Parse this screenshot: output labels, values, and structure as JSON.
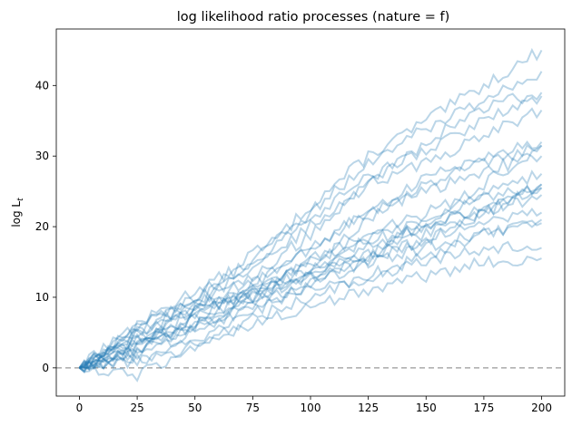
{
  "chart_data": {
    "type": "line",
    "title": "log likelihood ratio processes (nature = f)",
    "xlabel": "",
    "ylabel": "log L",
    "ylabel_sub": "t",
    "xlim": [
      -10,
      210
    ],
    "ylim": [
      -4,
      48
    ],
    "xticks": [
      0,
      25,
      50,
      75,
      100,
      125,
      150,
      175,
      200
    ],
    "yticks": [
      0,
      10,
      20,
      30,
      40
    ],
    "grid": false,
    "legend": "none",
    "line_color": "#1f77b4",
    "line_alpha": 0.3,
    "reference_line": {
      "y": 0,
      "style": "dashed",
      "color": "#999999"
    },
    "x": [
      0,
      25,
      50,
      75,
      100,
      125,
      150,
      175,
      200
    ],
    "series": [
      {
        "values": [
          0,
          6,
          11,
          15,
          23,
          30,
          35,
          40,
          45
        ]
      },
      {
        "values": [
          0,
          5,
          10,
          16,
          22,
          29,
          34,
          38,
          42
        ]
      },
      {
        "values": [
          0,
          4,
          8,
          13,
          19,
          26,
          32,
          37,
          39
        ]
      },
      {
        "values": [
          0,
          3,
          9,
          15,
          21,
          27,
          31,
          35,
          38.5
        ]
      },
      {
        "values": [
          0,
          5,
          9,
          14,
          20,
          26,
          29,
          33,
          36.5
        ]
      },
      {
        "values": [
          0,
          4,
          7,
          12,
          17,
          22,
          27,
          30,
          32
        ]
      },
      {
        "values": [
          0,
          3,
          6,
          10,
          15,
          21,
          26,
          29,
          31.5
        ]
      },
      {
        "values": [
          0,
          6,
          10,
          12,
          17,
          22,
          25,
          28,
          30
        ]
      },
      {
        "values": [
          0,
          2,
          6,
          11,
          15,
          19,
          22,
          25,
          27.5
        ]
      },
      {
        "values": [
          0,
          4,
          8,
          11,
          14,
          18,
          21,
          24,
          26
        ]
      },
      {
        "values": [
          0,
          3,
          7,
          10,
          13,
          16,
          19,
          22,
          25.5
        ]
      },
      {
        "values": [
          0,
          5,
          8,
          11,
          15,
          18,
          20,
          22,
          24.5
        ]
      },
      {
        "values": [
          0,
          2,
          5,
          9,
          12,
          15,
          18,
          21,
          22
        ]
      },
      {
        "values": [
          0,
          1,
          4,
          7,
          10,
          13,
          16,
          19,
          21
        ]
      },
      {
        "values": [
          0,
          3,
          6,
          9,
          11,
          13,
          15,
          17,
          17
        ]
      },
      {
        "values": [
          0,
          -1,
          3,
          6,
          9,
          11,
          13,
          15,
          15.5
        ]
      },
      {
        "values": [
          0,
          6,
          9,
          11,
          13,
          15,
          17,
          19,
          20.5
        ]
      },
      {
        "values": [
          0,
          2,
          7,
          11,
          14,
          16,
          18,
          22,
          26
        ]
      },
      {
        "values": [
          0,
          4,
          6,
          10,
          13,
          17,
          20,
          23,
          25.5
        ]
      },
      {
        "values": [
          0,
          1,
          3,
          8,
          12,
          16,
          21,
          26,
          31.5
        ]
      }
    ]
  }
}
